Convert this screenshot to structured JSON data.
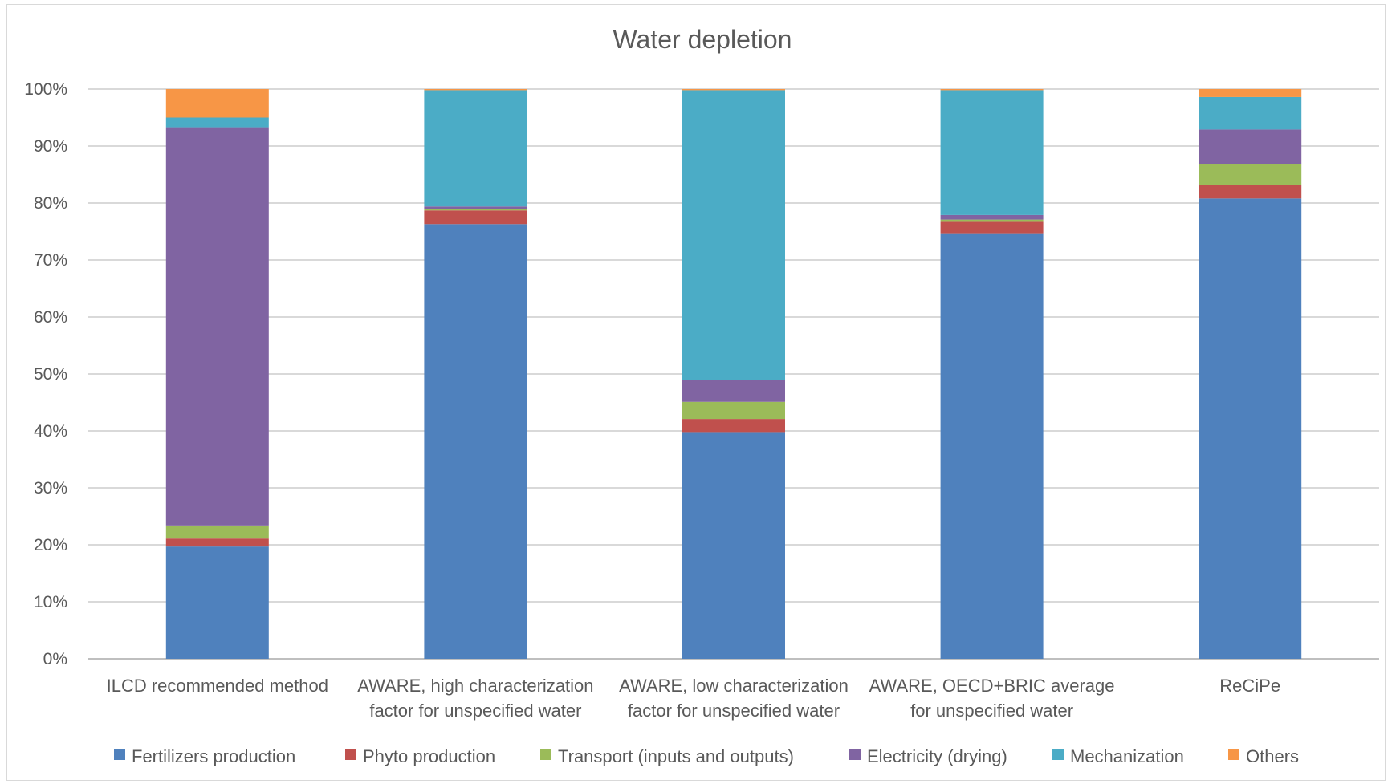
{
  "chart_data": {
    "type": "bar",
    "stacked": true,
    "percent": true,
    "title": "Water depletion",
    "xlabel": "",
    "ylabel": "",
    "ylim": [
      0,
      100
    ],
    "yticks": [
      "0%",
      "10%",
      "20%",
      "30%",
      "40%",
      "50%",
      "60%",
      "70%",
      "80%",
      "90%",
      "100%"
    ],
    "grid": true,
    "legend_position": "bottom",
    "categories": [
      [
        "ILCD recommended method"
      ],
      [
        "AWARE, high characterization",
        "factor for unspecified water"
      ],
      [
        "AWARE, low characterization",
        "factor for unspecified water"
      ],
      [
        "AWARE, OECD+BRIC average",
        "for unspecified water"
      ],
      [
        "ReCiPe"
      ]
    ],
    "series": [
      {
        "name": "Fertilizers production",
        "color": "#4f81bd",
        "values": [
          19.7,
          76.3,
          39.8,
          74.7,
          80.8
        ]
      },
      {
        "name": "Phyto production",
        "color": "#c0504d",
        "values": [
          1.4,
          2.4,
          2.3,
          2.0,
          2.4
        ]
      },
      {
        "name": "Transport (inputs and outputs)",
        "color": "#9bbb59",
        "values": [
          2.3,
          0.2,
          3.0,
          0.4,
          3.7
        ]
      },
      {
        "name": "Electricity (drying)",
        "color": "#8064a2",
        "values": [
          69.9,
          0.5,
          3.8,
          0.8,
          6.0
        ]
      },
      {
        "name": "Mechanization",
        "color": "#4bacc6",
        "values": [
          1.7,
          20.4,
          50.9,
          21.9,
          5.7
        ]
      },
      {
        "name": "Others",
        "color": "#f79646",
        "values": [
          5.0,
          0.2,
          0.2,
          0.2,
          1.4
        ]
      }
    ]
  }
}
